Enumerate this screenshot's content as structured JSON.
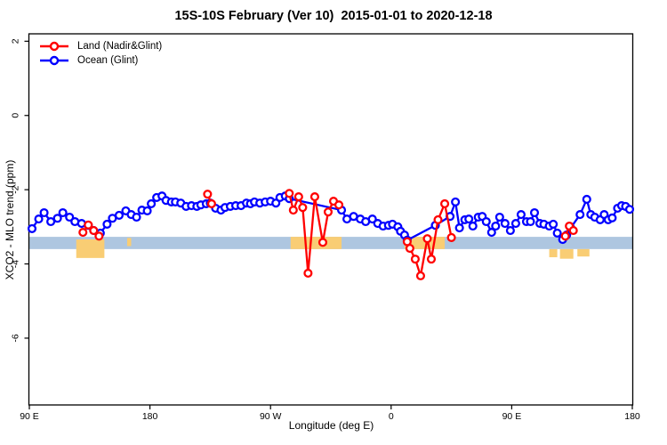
{
  "title": "15S-10S February (Ver 10)  2015-01-01 to 2020-12-18",
  "legend": {
    "items": [
      {
        "label": "Land (Nadir&Glint)",
        "color": "#ff0000"
      },
      {
        "label": "Ocean (Glint)",
        "color": "#0000ff"
      }
    ]
  },
  "colors": {
    "land": "#ff0000",
    "ocean": "#0000ff",
    "band": "#aec6e0",
    "orange": "#f9cd74",
    "axis": "#000000"
  },
  "chart_data": {
    "type": "line",
    "title": "15S-10S February (Ver 10)  2015-01-01 to 2020-12-18",
    "xlabel": "Longitude (deg E)",
    "ylabel": "XCO2 - MLO trend (ppm)",
    "x_axis": {
      "min": 90,
      "max": 540,
      "ticks": [
        {
          "v": 90,
          "label": "90 E"
        },
        {
          "v": 180,
          "label": "180"
        },
        {
          "v": 270,
          "label": "90 W"
        },
        {
          "v": 360,
          "label": "0"
        },
        {
          "v": 450,
          "label": "90 E"
        },
        {
          "v": 540,
          "label": "180"
        }
      ],
      "note": "longitude increases eastward continuously from 90E through 180, 90W, 0, 90E to 180"
    },
    "y_axis": {
      "min": -7.8,
      "max": 2.2,
      "ticks": [
        2,
        0,
        -2,
        -4,
        -6
      ]
    },
    "grid": false,
    "legend_position": "top-left",
    "band": {
      "ppm_top": -3.27,
      "ppm_bottom": -3.6,
      "color": "#aec6e0",
      "description": "light blue horizontal reference band across full longitude range"
    },
    "orange_regions": [
      {
        "lon": [
          125,
          146
        ],
        "ppm": [
          -3.34,
          -3.84
        ]
      },
      {
        "lon": [
          163,
          166
        ],
        "ppm": [
          -3.3,
          -3.52
        ]
      },
      {
        "lon": [
          285,
          323
        ],
        "ppm": [
          -3.27,
          -3.6
        ]
      },
      {
        "lon": [
          370,
          400
        ],
        "ppm": [
          -3.27,
          -3.6
        ]
      },
      {
        "lon": [
          478,
          484
        ],
        "ppm": [
          -3.6,
          -3.82
        ]
      },
      {
        "lon": [
          486,
          496
        ],
        "ppm": [
          -3.6,
          -3.86
        ]
      },
      {
        "lon": [
          499,
          508
        ],
        "ppm": [
          -3.6,
          -3.8
        ]
      }
    ],
    "series": [
      {
        "name": "Ocean (Glint)",
        "color": "#0000ff",
        "marker": "open-circle",
        "points": [
          [
            92,
            -3.05
          ],
          [
            97,
            -2.79
          ],
          [
            101,
            -2.62
          ],
          [
            106,
            -2.86
          ],
          [
            111,
            -2.77
          ],
          [
            115,
            -2.62
          ],
          [
            120,
            -2.74
          ],
          [
            124,
            -2.86
          ],
          [
            129,
            -2.91
          ],
          [
            134,
            -2.96
          ],
          [
            138,
            -3.1
          ],
          [
            143,
            -3.17
          ],
          [
            148,
            -2.93
          ],
          [
            152,
            -2.77
          ],
          [
            157,
            -2.69
          ],
          [
            162,
            -2.57
          ],
          [
            166,
            -2.67
          ],
          [
            170,
            -2.74
          ],
          [
            174,
            -2.55
          ],
          [
            178,
            -2.57
          ],
          [
            181,
            -2.38
          ],
          [
            185,
            -2.21
          ],
          [
            189,
            -2.17
          ],
          [
            192,
            -2.29
          ],
          [
            196,
            -2.33
          ],
          [
            199,
            -2.33
          ],
          [
            203,
            -2.36
          ],
          [
            207,
            -2.45
          ],
          [
            211,
            -2.43
          ],
          [
            215,
            -2.45
          ],
          [
            218,
            -2.41
          ],
          [
            222,
            -2.38
          ],
          [
            225,
            -2.36
          ],
          [
            229,
            -2.5
          ],
          [
            233,
            -2.55
          ],
          [
            236,
            -2.48
          ],
          [
            240,
            -2.45
          ],
          [
            244,
            -2.43
          ],
          [
            248,
            -2.43
          ],
          [
            252,
            -2.36
          ],
          [
            255,
            -2.38
          ],
          [
            258,
            -2.33
          ],
          [
            262,
            -2.36
          ],
          [
            266,
            -2.33
          ],
          [
            270,
            -2.31
          ],
          [
            274,
            -2.36
          ],
          [
            277,
            -2.21
          ],
          [
            281,
            -2.17
          ],
          [
            284,
            -2.24
          ],
          [
            323,
            -2.55
          ],
          [
            327,
            -2.79
          ],
          [
            332,
            -2.72
          ],
          [
            337,
            -2.79
          ],
          [
            341,
            -2.86
          ],
          [
            346,
            -2.79
          ],
          [
            350,
            -2.91
          ],
          [
            354,
            -2.98
          ],
          [
            358,
            -2.96
          ],
          [
            361,
            -2.93
          ],
          [
            365,
            -3.0
          ],
          [
            367,
            -3.12
          ],
          [
            370,
            -3.22
          ],
          [
            372,
            -3.36
          ],
          [
            393,
            -2.96
          ],
          [
            404,
            -2.72
          ],
          [
            408,
            -2.33
          ],
          [
            411,
            -3.03
          ],
          [
            415,
            -2.81
          ],
          [
            418,
            -2.79
          ],
          [
            421,
            -2.98
          ],
          [
            425,
            -2.74
          ],
          [
            428,
            -2.72
          ],
          [
            431,
            -2.86
          ],
          [
            435,
            -3.15
          ],
          [
            438,
            -2.98
          ],
          [
            441,
            -2.74
          ],
          [
            445,
            -2.91
          ],
          [
            449,
            -3.1
          ],
          [
            453,
            -2.91
          ],
          [
            457,
            -2.67
          ],
          [
            461,
            -2.86
          ],
          [
            464,
            -2.86
          ],
          [
            467,
            -2.62
          ],
          [
            471,
            -2.91
          ],
          [
            474,
            -2.93
          ],
          [
            478,
            -2.98
          ],
          [
            481,
            -2.93
          ],
          [
            484,
            -3.17
          ],
          [
            488,
            -3.34
          ],
          [
            491,
            -3.22
          ],
          [
            494,
            -3.03
          ],
          [
            501,
            -2.67
          ],
          [
            506,
            -2.26
          ],
          [
            509,
            -2.67
          ],
          [
            512,
            -2.74
          ],
          [
            516,
            -2.81
          ],
          [
            519,
            -2.67
          ],
          [
            522,
            -2.81
          ],
          [
            525,
            -2.76
          ],
          [
            529,
            -2.5
          ],
          [
            532,
            -2.43
          ],
          [
            535,
            -2.45
          ],
          [
            538,
            -2.53
          ]
        ]
      },
      {
        "name": "Land (Nadir&Glint)",
        "color": "#ff0000",
        "marker": "open-circle",
        "segments": [
          [
            [
              130,
              -3.15
            ],
            [
              134,
              -2.95
            ],
            [
              138,
              -3.1
            ],
            [
              142,
              -3.25
            ]
          ],
          [
            [
              223,
              -2.12
            ],
            [
              226,
              -2.38
            ]
          ],
          [
            [
              284,
              -2.1
            ],
            [
              287,
              -2.55
            ],
            [
              291,
              -2.19
            ],
            [
              294,
              -2.48
            ],
            [
              298,
              -4.25
            ],
            [
              303,
              -2.19
            ],
            [
              309,
              -3.42
            ],
            [
              313,
              -2.6
            ],
            [
              317,
              -2.31
            ],
            [
              321,
              -2.41
            ]
          ],
          [
            [
              372,
              -3.4
            ],
            [
              374,
              -3.58
            ],
            [
              378,
              -3.87
            ],
            [
              382,
              -4.32
            ],
            [
              387,
              -3.32
            ],
            [
              390,
              -3.87
            ],
            [
              395,
              -2.81
            ],
            [
              400,
              -2.38
            ],
            [
              405,
              -3.29
            ]
          ],
          [
            [
              490,
              -3.25
            ],
            [
              493,
              -2.98
            ],
            [
              496,
              -3.1
            ]
          ]
        ]
      }
    ]
  }
}
